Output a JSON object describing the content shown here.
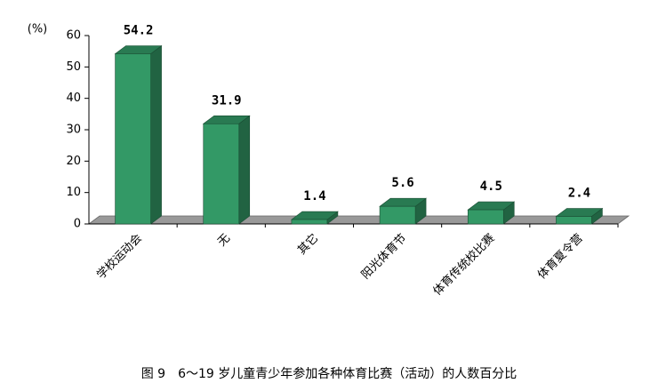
{
  "chart_data": {
    "type": "bar3d",
    "title": "图 9　6～19 岁儿童青少年参加各种体育比赛（活动）的人数百分比",
    "y_label": "(%)",
    "categories": [
      "学校运动会",
      "无",
      "其它",
      "阳光体育节",
      "体育传统校比赛",
      "体育夏令营"
    ],
    "values": [
      54.2,
      31.9,
      1.4,
      5.6,
      4.5,
      2.4
    ],
    "color": "#339966",
    "ylim": [
      0,
      60
    ],
    "yticks": [
      0,
      10,
      20,
      30,
      40,
      50,
      60
    ]
  }
}
